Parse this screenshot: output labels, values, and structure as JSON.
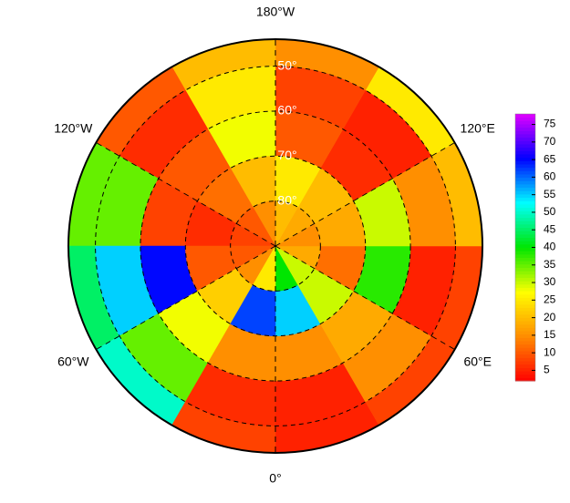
{
  "map": {
    "lat_edges": [
      44,
      50,
      60,
      70,
      80,
      90
    ],
    "lon_edges": [
      0,
      30,
      60,
      90,
      120,
      150,
      180,
      210,
      240,
      270,
      300,
      330,
      360
    ],
    "values": [
      [
        5,
        8,
        8,
        20,
        25,
        15,
        20,
        10,
        35,
        45,
        50,
        8
      ],
      [
        5,
        15,
        5,
        15,
        5,
        8,
        25,
        6,
        35,
        55,
        35,
        6
      ],
      [
        15,
        18,
        38,
        30,
        6,
        10,
        28,
        10,
        8,
        65,
        28,
        15
      ],
      [
        55,
        30,
        12,
        18,
        20,
        25,
        20,
        12,
        6,
        10,
        22,
        62
      ],
      [
        40,
        30,
        18,
        15,
        18,
        20,
        15,
        10,
        8,
        10,
        15,
        25
      ]
    ],
    "value_lim": [
      2,
      78
    ],
    "colormap": [
      "#ff0000",
      "#ff8c00",
      "#ffff00",
      "#00e600",
      "#00ffff",
      "#0000ff",
      "#e000ff"
    ],
    "colorbar_ticks": [
      5,
      10,
      15,
      20,
      25,
      30,
      35,
      40,
      45,
      50,
      55,
      60,
      65,
      70,
      75
    ],
    "lon_ticks": [
      {
        "value": 0,
        "label": "0°"
      },
      {
        "value": 60,
        "label": "60°E"
      },
      {
        "value": 120,
        "label": "120°E"
      },
      {
        "value": 180,
        "label": "180°W"
      },
      {
        "value": 240,
        "label": "120°W"
      },
      {
        "value": 300,
        "label": "60°W"
      }
    ],
    "lat_ticks": [
      {
        "value": 50,
        "label": "50°"
      },
      {
        "value": 60,
        "label": "60°"
      },
      {
        "value": 70,
        "label": "70°"
      },
      {
        "value": 80,
        "label": "80°"
      }
    ]
  }
}
